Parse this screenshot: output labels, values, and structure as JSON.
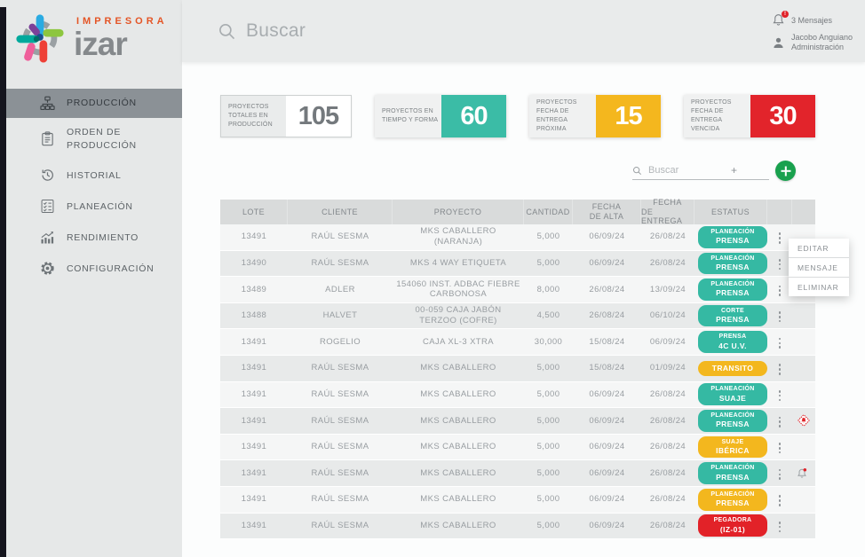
{
  "brand": {
    "impresora": "IMPRESORA",
    "izar": "izar"
  },
  "sidebar": {
    "items": [
      {
        "id": "produccion",
        "label": "PRODUCCIÓN",
        "icon": "sitemap",
        "active": true
      },
      {
        "id": "orden-de-produccion",
        "label": "ORDEN DE PRODUCCIÓN",
        "icon": "clipboard",
        "active": false
      },
      {
        "id": "historial",
        "label": "HISTORIAL",
        "icon": "history",
        "active": false
      },
      {
        "id": "planeacion",
        "label": "PLANEACIÓN",
        "icon": "checklist",
        "active": false
      },
      {
        "id": "rendimiento",
        "label": "RENDIMIENTO",
        "icon": "chart",
        "active": false
      },
      {
        "id": "configuracion",
        "label": "CONFIGURACIÓN",
        "icon": "gear",
        "active": false
      }
    ]
  },
  "topbar": {
    "search_placeholder": "Buscar",
    "messages_label": "3 Mensajes",
    "messages_badge": "!",
    "user_name": "Jacobo Anguiano",
    "user_role": "Administración"
  },
  "stats": [
    {
      "label": "PROYECTOS TOTALES EN PRODUCCIÓN",
      "value": "105",
      "value_bg": "#ffffff",
      "value_color": "#74797d",
      "bordered": true
    },
    {
      "label": "PROYECTOS EN TIEMPO Y FORMA",
      "value": "60",
      "value_bg": "#3bbca6",
      "value_color": "#ffffff",
      "bordered": false
    },
    {
      "label": "PROYECTOS FECHA DE ENTREGA PRÓXIMA",
      "value": "15",
      "value_bg": "#f4b71e",
      "value_color": "#ffffff",
      "bordered": false
    },
    {
      "label": "PROYECTOS FECHA DE ENTREGA VENCIDA",
      "value": "30",
      "value_bg": "#e2242b",
      "value_color": "#ffffff",
      "bordered": false
    }
  ],
  "toolbar": {
    "search_placeholder": "Buscar",
    "plus_label": "+"
  },
  "colors": {
    "teal": "#35b9a3",
    "yellow": "#f3b71e",
    "red": "#e22228",
    "accent_green": "#19a14e"
  },
  "table": {
    "headers": [
      {
        "lines": [
          "LOTE"
        ]
      },
      {
        "lines": [
          "CLIENTE"
        ]
      },
      {
        "lines": [
          "PROYECTO"
        ]
      },
      {
        "lines": [
          "CANTIDAD"
        ]
      },
      {
        "lines": [
          "FECHA",
          "DE ALTA"
        ]
      },
      {
        "lines": [
          "FECHA",
          "DE ENTREGA"
        ]
      },
      {
        "lines": [
          "ESTATUS"
        ]
      }
    ],
    "rows": [
      {
        "lote": "13491",
        "cliente": "RAÚL SESMA",
        "proyecto": "MKS CABALLERO (NARANJA)",
        "cantidad": "5,000",
        "fecha_alta": "06/09/24",
        "fecha_entrega": "26/08/24",
        "estatus": {
          "lines": [
            "PLANEACIÓN",
            "PRENSA"
          ],
          "color": "teal"
        },
        "icon": null
      },
      {
        "lote": "13490",
        "cliente": "RAÚL SESMA",
        "proyecto": "MKS 4 WAY ETIQUETA",
        "cantidad": "5,000",
        "fecha_alta": "06/09/24",
        "fecha_entrega": "26/08/24",
        "estatus": {
          "lines": [
            "PLANEACIÓN",
            "PRENSA"
          ],
          "color": "teal"
        },
        "icon": null
      },
      {
        "lote": "13489",
        "cliente": "ADLER",
        "proyecto": "154060 INST. ADBAC FIEBRE CARBONOSA",
        "cantidad": "8,000",
        "fecha_alta": "26/08/24",
        "fecha_entrega": "13/09/24",
        "estatus": {
          "lines": [
            "PLANEACIÓN",
            "PRENSA"
          ],
          "color": "teal"
        },
        "icon": null
      },
      {
        "lote": "13488",
        "cliente": "HALVET",
        "proyecto": "00-059 CAJA JABÓN TERZOO (COFRE)",
        "cantidad": "4,500",
        "fecha_alta": "26/08/24",
        "fecha_entrega": "06/10/24",
        "estatus": {
          "lines": [
            "CORTE",
            "PRENSA"
          ],
          "color": "teal"
        },
        "icon": null
      },
      {
        "lote": "13491",
        "cliente": "ROGELIO",
        "proyecto": "CAJA XL-3 XTRA",
        "cantidad": "30,000",
        "fecha_alta": "15/08/24",
        "fecha_entrega": "06/09/24",
        "estatus": {
          "lines": [
            "PRENSA",
            "4C U.V."
          ],
          "color": "teal"
        },
        "icon": null
      },
      {
        "lote": "13491",
        "cliente": "RAÚL SESMA",
        "proyecto": "MKS CABALLERO",
        "cantidad": "5,000",
        "fecha_alta": "15/08/24",
        "fecha_entrega": "01/09/24",
        "estatus": {
          "lines": [
            "TRANSITO"
          ],
          "color": "yellow"
        },
        "icon": null
      },
      {
        "lote": "13491",
        "cliente": "RAÚL SESMA",
        "proyecto": "MKS CABALLERO",
        "cantidad": "5,000",
        "fecha_alta": "06/09/24",
        "fecha_entrega": "26/08/24",
        "estatus": {
          "lines": [
            "PLANEACIÓN",
            "SUAJE"
          ],
          "color": "teal"
        },
        "icon": null
      },
      {
        "lote": "13491",
        "cliente": "RAÚL SESMA",
        "proyecto": "MKS CABALLERO",
        "cantidad": "5,000",
        "fecha_alta": "06/09/24",
        "fecha_entrega": "26/08/24",
        "estatus": {
          "lines": [
            "PLANEACIÓN",
            "PRENSA"
          ],
          "color": "teal"
        },
        "icon": "warning-diamond"
      },
      {
        "lote": "13491",
        "cliente": "RAÚL SESMA",
        "proyecto": "MKS CABALLERO",
        "cantidad": "5,000",
        "fecha_alta": "06/09/24",
        "fecha_entrega": "26/08/24",
        "estatus": {
          "lines": [
            "SUAJE",
            "IBÉRICA"
          ],
          "color": "yellow"
        },
        "icon": null
      },
      {
        "lote": "13491",
        "cliente": "RAÚL SESMA",
        "proyecto": "MKS CABALLERO",
        "cantidad": "5,000",
        "fecha_alta": "06/09/24",
        "fecha_entrega": "26/08/24",
        "estatus": {
          "lines": [
            "PLANEACIÓN",
            "PRENSA"
          ],
          "color": "teal"
        },
        "icon": "bell-alert"
      },
      {
        "lote": "13491",
        "cliente": "RAÚL SESMA",
        "proyecto": "MKS CABALLERO",
        "cantidad": "5,000",
        "fecha_alta": "06/09/24",
        "fecha_entrega": "26/08/24",
        "estatus": {
          "lines": [
            "PLANEACIÓN",
            "PRENSA"
          ],
          "color": "yellow"
        },
        "icon": null
      },
      {
        "lote": "13491",
        "cliente": "RAÚL SESMA",
        "proyecto": "MKS CABALLERO",
        "cantidad": "5,000",
        "fecha_alta": "06/09/24",
        "fecha_entrega": "26/08/24",
        "estatus": {
          "lines": [
            "PEGADORA",
            "(IZ-01)"
          ],
          "color": "red"
        },
        "icon": null
      }
    ]
  },
  "context_menu": {
    "items": [
      "EDITAR",
      "MENSAJE",
      "ELIMINAR"
    ]
  }
}
